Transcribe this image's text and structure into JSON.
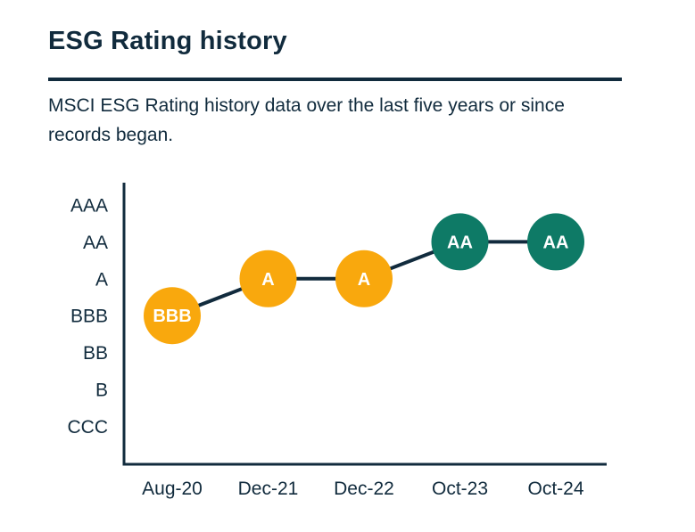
{
  "page": {
    "title": "ESG Rating history",
    "subtitle": "MSCI ESG Rating history data over the last five years or since records began."
  },
  "colors": {
    "text_navy": "#112B3D",
    "axis_line_navy": "#112B3D",
    "connector_line_navy": "#112B3D",
    "rating_yellow": "#F9A80D",
    "rating_teal": "#0E7A66",
    "circle_label_white": "#FFFFFF",
    "background": "#FFFFFF"
  },
  "chart_data": {
    "type": "line",
    "title": "ESG Rating history",
    "subtitle": "MSCI ESG Rating history data over the last five years or since records began.",
    "x_categories": [
      "Aug-20",
      "Dec-21",
      "Dec-22",
      "Oct-23",
      "Oct-24"
    ],
    "y_categories_top_to_bottom": [
      "AAA",
      "AA",
      "A",
      "BBB",
      "BB",
      "B",
      "CCC"
    ],
    "points": [
      {
        "x": "Aug-20",
        "rating": "BBB",
        "color": "#F9A80D"
      },
      {
        "x": "Dec-21",
        "rating": "A",
        "color": "#F9A80D"
      },
      {
        "x": "Dec-22",
        "rating": "A",
        "color": "#F9A80D"
      },
      {
        "x": "Oct-23",
        "rating": "AA",
        "color": "#0E7A66"
      },
      {
        "x": "Oct-24",
        "rating": "AA",
        "color": "#0E7A66"
      }
    ],
    "marker_style": "labeled-circle",
    "grid": false,
    "legend": "none",
    "xlabel": "",
    "ylabel": ""
  }
}
